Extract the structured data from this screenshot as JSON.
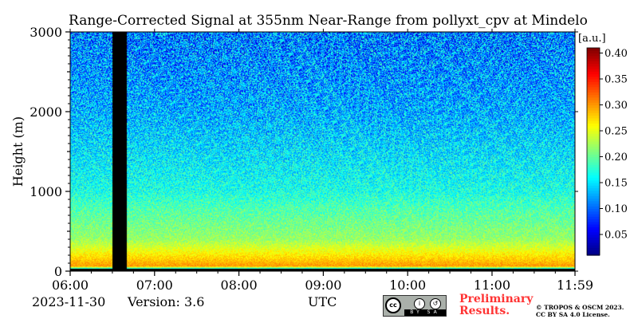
{
  "chart_data": {
    "type": "heatmap",
    "title": "Range-Corrected Signal at 355nm Near-Range from pollyxt_cpv at Mindelo",
    "xlabel": "UTC",
    "ylabel": "Height (m)",
    "x_tick_labels": [
      "06:00",
      "07:00",
      "08:00",
      "09:00",
      "10:00",
      "11:00",
      "11:59"
    ],
    "x_tick_values_hours": [
      6.0,
      7.0,
      8.0,
      9.0,
      10.0,
      11.0,
      11.9833
    ],
    "xlim_hours": [
      6.0,
      11.9833
    ],
    "y_tick_labels": [
      "0",
      "1000",
      "2000",
      "3000"
    ],
    "y_tick_values": [
      0,
      1000,
      2000,
      3000
    ],
    "ylim": [
      0,
      3000
    ],
    "colorbar": {
      "unit": "[a.u.]",
      "tick_labels": [
        "0.05",
        "0.10",
        "0.15",
        "0.20",
        "0.25",
        "0.30",
        "0.35",
        "0.40"
      ],
      "tick_values": [
        0.05,
        0.1,
        0.15,
        0.2,
        0.25,
        0.3,
        0.35,
        0.4
      ],
      "range": [
        0.01,
        0.41
      ],
      "colormap": "jet"
    },
    "no_data_intervals_hours": [
      [
        6.5,
        6.67
      ]
    ],
    "approx_profile": [
      {
        "height_m": 0,
        "value": 0.0
      },
      {
        "height_m": 60,
        "value": 0.3
      },
      {
        "height_m": 150,
        "value": 0.28
      },
      {
        "height_m": 400,
        "value": 0.22
      },
      {
        "height_m": 800,
        "value": 0.19
      },
      {
        "height_m": 1000,
        "value": 0.17
      },
      {
        "height_m": 1500,
        "value": 0.15
      },
      {
        "height_m": 2000,
        "value": 0.13
      },
      {
        "height_m": 2500,
        "value": 0.12
      },
      {
        "height_m": 3000,
        "value": 0.11
      }
    ]
  },
  "footer": {
    "date": "2023-11-30",
    "version": "Version: 3.6",
    "cc_badge_text": "cc",
    "cc_strip_text": "BY SA",
    "preliminary_line1": "Preliminary",
    "preliminary_line2": "Results.",
    "copyright_line1": "© TROPOS & OSCM 2023.",
    "copyright_line2": "CC BY SA 4.0 License."
  }
}
